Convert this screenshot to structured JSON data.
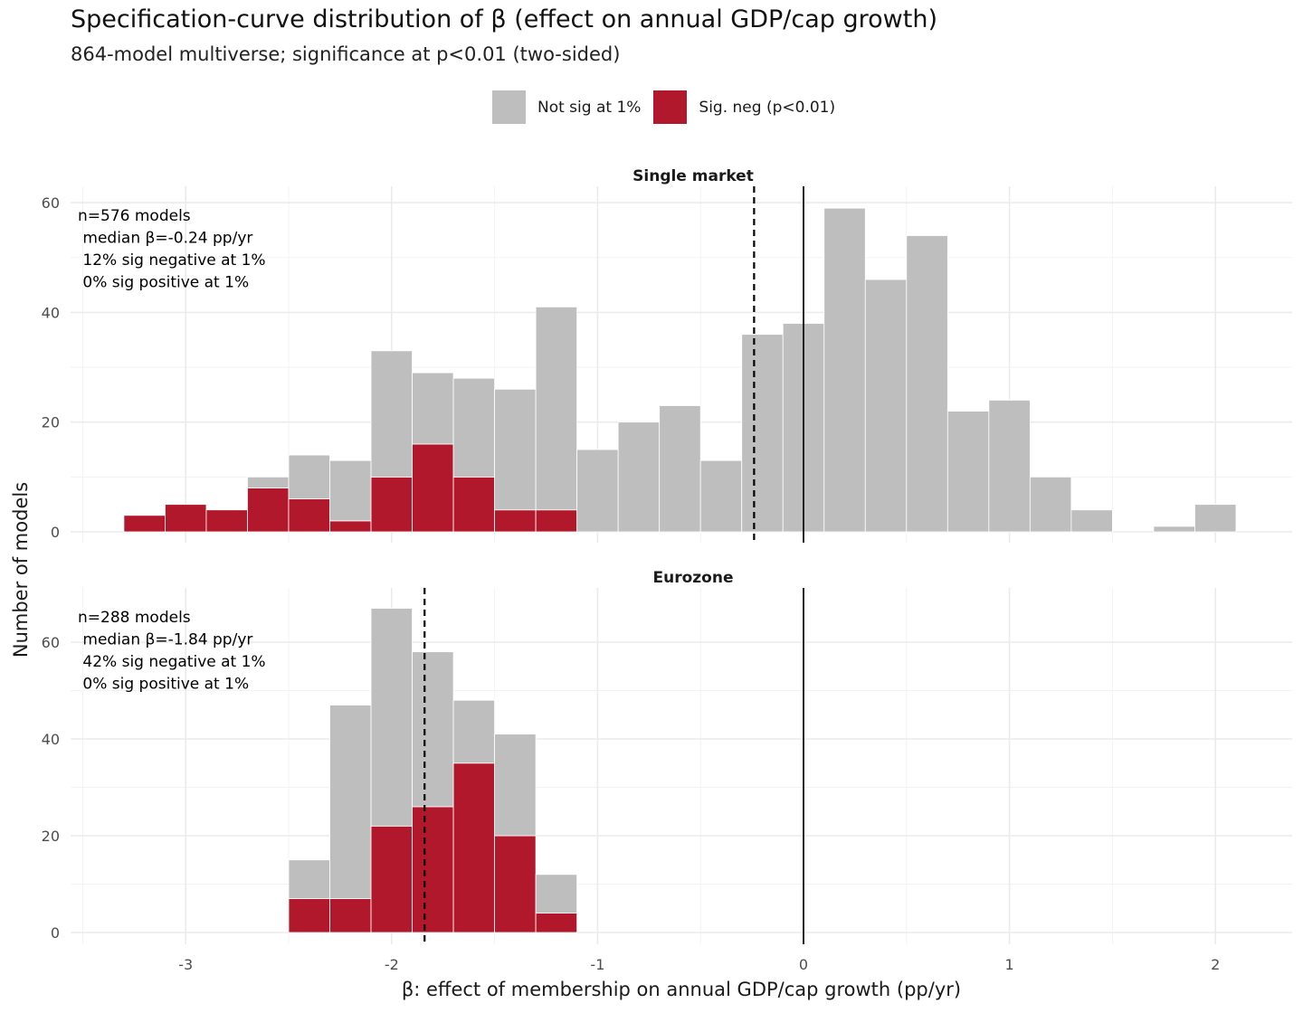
{
  "title": "Specification-curve distribution of β (effect on annual GDP/cap growth)",
  "subtitle": "864-model multiverse; significance at p<0.01 (two-sided)",
  "legend": [
    {
      "label": "Not sig at 1%",
      "color": "#bebebe"
    },
    {
      "label": "Sig. neg (p<0.01)",
      "color": "#b2182b"
    }
  ],
  "colors": {
    "not_sig": "#bebebe",
    "sig_neg": "#b2182b",
    "grid": "#ebebeb"
  },
  "chart_data": {
    "type": "bar",
    "stacked": true,
    "bin_width": 0.2,
    "xlabel": "β: effect of membership on annual GDP/cap growth (pp/yr)",
    "ylabel": "Number of models",
    "xlim": [
      -3.55,
      2.35
    ],
    "x_ticks": [
      -3,
      -2,
      -1,
      0,
      1,
      2
    ],
    "x_tick_labels": [
      "-3",
      "-2",
      "-1",
      "0",
      "1",
      "2"
    ],
    "reference_line_x": 0,
    "grid": true,
    "legend_position": "top",
    "panels": [
      {
        "name": "Single market",
        "ylim": [
          0,
          62
        ],
        "y_ticks": [
          0,
          20,
          40,
          60
        ],
        "y_tick_labels": [
          "0",
          "20",
          "40",
          "60"
        ],
        "median": -0.24,
        "annotation": [
          "n=576 models",
          " median β=-0.24 pp/yr",
          " 12% sig negative at 1%",
          " 0% sig positive at 1%"
        ],
        "bins": [
          {
            "x": -3.2,
            "not_sig": 0,
            "sig_neg": 3
          },
          {
            "x": -3.0,
            "not_sig": 0,
            "sig_neg": 5
          },
          {
            "x": -2.8,
            "not_sig": 0,
            "sig_neg": 4
          },
          {
            "x": -2.6,
            "not_sig": 2,
            "sig_neg": 8
          },
          {
            "x": -2.4,
            "not_sig": 8,
            "sig_neg": 6
          },
          {
            "x": -2.2,
            "not_sig": 11,
            "sig_neg": 2
          },
          {
            "x": -2.0,
            "not_sig": 23,
            "sig_neg": 10
          },
          {
            "x": -1.8,
            "not_sig": 13,
            "sig_neg": 16
          },
          {
            "x": -1.6,
            "not_sig": 18,
            "sig_neg": 10
          },
          {
            "x": -1.4,
            "not_sig": 22,
            "sig_neg": 4
          },
          {
            "x": -1.2,
            "not_sig": 37,
            "sig_neg": 4
          },
          {
            "x": -1.0,
            "not_sig": 15,
            "sig_neg": 0
          },
          {
            "x": -0.8,
            "not_sig": 20,
            "sig_neg": 0
          },
          {
            "x": -0.6,
            "not_sig": 23,
            "sig_neg": 0
          },
          {
            "x": -0.4,
            "not_sig": 13,
            "sig_neg": 0
          },
          {
            "x": -0.2,
            "not_sig": 36,
            "sig_neg": 0
          },
          {
            "x": 0.0,
            "not_sig": 38,
            "sig_neg": 0
          },
          {
            "x": 0.2,
            "not_sig": 59,
            "sig_neg": 0
          },
          {
            "x": 0.4,
            "not_sig": 46,
            "sig_neg": 0
          },
          {
            "x": 0.6,
            "not_sig": 54,
            "sig_neg": 0
          },
          {
            "x": 0.8,
            "not_sig": 22,
            "sig_neg": 0
          },
          {
            "x": 1.0,
            "not_sig": 24,
            "sig_neg": 0
          },
          {
            "x": 1.2,
            "not_sig": 10,
            "sig_neg": 0
          },
          {
            "x": 1.4,
            "not_sig": 4,
            "sig_neg": 0
          },
          {
            "x": 1.6,
            "not_sig": 0,
            "sig_neg": 0
          },
          {
            "x": 1.8,
            "not_sig": 1,
            "sig_neg": 0
          },
          {
            "x": 2.0,
            "not_sig": 5,
            "sig_neg": 0
          }
        ]
      },
      {
        "name": "Eurozone",
        "ylim": [
          0,
          68
        ],
        "y_ticks": [
          0,
          20,
          40,
          60
        ],
        "y_tick_labels": [
          "0",
          "20",
          "40",
          "60"
        ],
        "median": -1.84,
        "annotation": [
          "n=288 models",
          " median β=-1.84 pp/yr",
          " 42% sig negative at 1%",
          " 0% sig positive at 1%"
        ],
        "bins": [
          {
            "x": -2.4,
            "not_sig": 8,
            "sig_neg": 7
          },
          {
            "x": -2.2,
            "not_sig": 40,
            "sig_neg": 7
          },
          {
            "x": -2.0,
            "not_sig": 45,
            "sig_neg": 22
          },
          {
            "x": -1.8,
            "not_sig": 32,
            "sig_neg": 26
          },
          {
            "x": -1.6,
            "not_sig": 13,
            "sig_neg": 35
          },
          {
            "x": -1.4,
            "not_sig": 21,
            "sig_neg": 20
          },
          {
            "x": -1.2,
            "not_sig": 8,
            "sig_neg": 4
          }
        ]
      }
    ]
  }
}
